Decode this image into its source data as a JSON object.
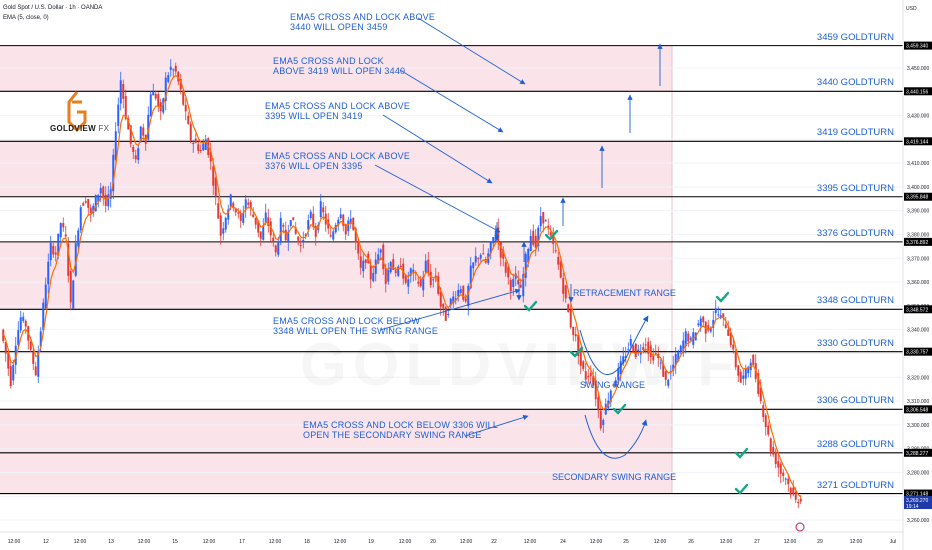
{
  "header": {
    "symbol_line": "Gold Spot / U.S. Dollar · 1h · OANDA",
    "indicator_line": "EMA (5, close, 0)",
    "currency": "USD"
  },
  "logo": {
    "brand": "GOLDVIEW",
    "suffix": "FX"
  },
  "watermark": "GOLDVIEW F",
  "annotations": [
    {
      "id": "note-3459",
      "lines": [
        "EMA5 CROSS AND LOCK ABOVE",
        "3440 WILL OPEN 3459"
      ]
    },
    {
      "id": "note-3440",
      "lines": [
        "EMA5 CROSS AND LOCK",
        "ABOVE 3419 WILL OPEN 3440"
      ]
    },
    {
      "id": "note-3419",
      "lines": [
        "EMA5 CROSS AND LOCK ABOVE",
        "3395 WILL OPEN 3419"
      ]
    },
    {
      "id": "note-3395",
      "lines": [
        "EMA5 CROSS AND LOCK ABOVE",
        "3376 WILL OPEN 3395"
      ]
    },
    {
      "id": "note-swing",
      "lines": [
        "EMA5 CROSS AND LOCK BELOW",
        "3348 WILL OPEN THE SWING RANGE"
      ]
    },
    {
      "id": "note-secondary",
      "lines": [
        "EMA5 CROSS AND LOCK BELOW 3306 WILL",
        "OPEN THE SECONDARY SWING RANGE"
      ]
    }
  ],
  "range_labels": {
    "retracement": "RETRACEMENT RANGE",
    "swing": "SWING RANGE",
    "secondary": "SECONDARY SWING RANGE"
  },
  "colors": {
    "band": "#fbe3ea",
    "candle_up": "#2962ff",
    "candle_down": "#e53935",
    "ema": "#ff6d00",
    "annotation": "#1f5fd6",
    "check": "#17a589",
    "level_line": "#000000"
  },
  "chart_data": {
    "type": "candlestick",
    "title": "Gold Spot / U.S. Dollar · 1h · OANDA",
    "ylim": [
      3255,
      3468
    ],
    "y_ticks": [
      3260,
      3270,
      3280,
      3290,
      3300,
      3310,
      3320,
      3330,
      3340,
      3350,
      3360,
      3370,
      3380,
      3390,
      3400,
      3410,
      3420,
      3430,
      3440,
      3450
    ],
    "x_ticks": [
      "12:00",
      "12",
      "12:00",
      "13",
      "12:00",
      "15",
      "12:00",
      "17",
      "12:00",
      "18",
      "12:00",
      "19",
      "12:00",
      "20",
      "12:00",
      "22",
      "12:00",
      "24",
      "12:00",
      "25",
      "12:00",
      "26",
      "12:00",
      "27",
      "12:00",
      "29",
      "12:00",
      "Jul"
    ],
    "levels": [
      {
        "value": 3459.34,
        "label": "3459 GOLDTURN",
        "price_tag": "3,459.340"
      },
      {
        "value": 3440.156,
        "label": "3440 GOLDTURN",
        "price_tag": "3,440.156"
      },
      {
        "value": 3419.144,
        "label": "3419 GOLDTURN",
        "price_tag": "3,419.144"
      },
      {
        "value": 3395.848,
        "label": "3395 GOLDTURN",
        "price_tag": "3,395.848"
      },
      {
        "value": 3376.892,
        "label": "3376 GOLDTURN",
        "price_tag": "3,376.892"
      },
      {
        "value": 3348.572,
        "label": "3348 GOLDTURN",
        "price_tag": "3,348.572"
      },
      {
        "value": 3330.757,
        "label": "3330 GOLDTURN",
        "price_tag": "3,330.757"
      },
      {
        "value": 3306.548,
        "label": "3306 GOLDTURN",
        "price_tag": "3,306.548"
      },
      {
        "value": 3288.277,
        "label": "3288 GOLDTURN",
        "price_tag": "3,288.277"
      },
      {
        "value": 3271.148,
        "label": "3271 GOLDTURN",
        "price_tag": "3,271.148"
      }
    ],
    "current_price": {
      "value": 3269.27,
      "tag": "3,269.270",
      "countdown": "19:14"
    },
    "path_points": [
      [
        0,
        3340
      ],
      [
        5,
        3330
      ],
      [
        10,
        3318
      ],
      [
        15,
        3335
      ],
      [
        20,
        3345
      ],
      [
        25,
        3342
      ],
      [
        30,
        3330
      ],
      [
        35,
        3322
      ],
      [
        40,
        3340
      ],
      [
        45,
        3360
      ],
      [
        50,
        3375
      ],
      [
        55,
        3372
      ],
      [
        60,
        3385
      ],
      [
        65,
        3378
      ],
      [
        70,
        3350
      ],
      [
        75,
        3375
      ],
      [
        80,
        3392
      ],
      [
        85,
        3395
      ],
      [
        90,
        3388
      ],
      [
        95,
        3395
      ],
      [
        100,
        3400
      ],
      [
        105,
        3392
      ],
      [
        110,
        3398
      ],
      [
        115,
        3425
      ],
      [
        120,
        3445
      ],
      [
        125,
        3430
      ],
      [
        130,
        3418
      ],
      [
        135,
        3410
      ],
      [
        140,
        3425
      ],
      [
        145,
        3420
      ],
      [
        150,
        3440
      ],
      [
        155,
        3438
      ],
      [
        160,
        3430
      ],
      [
        165,
        3445
      ],
      [
        170,
        3450
      ],
      [
        175,
        3448
      ],
      [
        180,
        3440
      ],
      [
        185,
        3430
      ],
      [
        190,
        3420
      ],
      [
        195,
        3418
      ],
      [
        200,
        3415
      ],
      [
        205,
        3420
      ],
      [
        210,
        3410
      ],
      [
        215,
        3395
      ],
      [
        220,
        3380
      ],
      [
        225,
        3388
      ],
      [
        230,
        3395
      ],
      [
        235,
        3390
      ],
      [
        240,
        3385
      ],
      [
        245,
        3395
      ],
      [
        250,
        3390
      ],
      [
        255,
        3385
      ],
      [
        260,
        3378
      ],
      [
        265,
        3388
      ],
      [
        270,
        3380
      ],
      [
        275,
        3372
      ],
      [
        280,
        3385
      ],
      [
        285,
        3378
      ],
      [
        290,
        3388
      ],
      [
        295,
        3380
      ],
      [
        300,
        3375
      ],
      [
        305,
        3382
      ],
      [
        310,
        3388
      ],
      [
        315,
        3380
      ],
      [
        320,
        3392
      ],
      [
        325,
        3385
      ],
      [
        330,
        3378
      ],
      [
        335,
        3385
      ],
      [
        340,
        3390
      ],
      [
        345,
        3380
      ],
      [
        350,
        3388
      ],
      [
        355,
        3376
      ],
      [
        360,
        3365
      ],
      [
        365,
        3370
      ],
      [
        370,
        3362
      ],
      [
        375,
        3368
      ],
      [
        380,
        3375
      ],
      [
        385,
        3360
      ],
      [
        390,
        3370
      ],
      [
        395,
        3362
      ],
      [
        400,
        3368
      ],
      [
        405,
        3358
      ],
      [
        410,
        3365
      ],
      [
        415,
        3362
      ],
      [
        420,
        3358
      ],
      [
        425,
        3368
      ],
      [
        430,
        3360
      ],
      [
        435,
        3362
      ],
      [
        440,
        3350
      ],
      [
        445,
        3345
      ],
      [
        450,
        3352
      ],
      [
        455,
        3355
      ],
      [
        460,
        3358
      ],
      [
        465,
        3350
      ],
      [
        470,
        3365
      ],
      [
        475,
        3370
      ],
      [
        480,
        3372
      ],
      [
        485,
        3368
      ],
      [
        490,
        3375
      ],
      [
        495,
        3382
      ],
      [
        500,
        3372
      ],
      [
        505,
        3365
      ],
      [
        510,
        3358
      ],
      [
        515,
        3362
      ],
      [
        520,
        3356
      ],
      [
        525,
        3370
      ],
      [
        530,
        3380
      ],
      [
        535,
        3375
      ],
      [
        540,
        3388
      ],
      [
        545,
        3385
      ],
      [
        550,
        3378
      ],
      [
        555,
        3372
      ],
      [
        560,
        3362
      ],
      [
        565,
        3352
      ],
      [
        570,
        3342
      ],
      [
        575,
        3336
      ],
      [
        580,
        3325
      ],
      [
        585,
        3320
      ],
      [
        590,
        3322
      ],
      [
        595,
        3312
      ],
      [
        600,
        3300
      ],
      [
        605,
        3308
      ],
      [
        610,
        3315
      ],
      [
        615,
        3320
      ],
      [
        620,
        3325
      ],
      [
        625,
        3330
      ],
      [
        630,
        3335
      ],
      [
        635,
        3330
      ],
      [
        640,
        3332
      ],
      [
        645,
        3335
      ],
      [
        650,
        3328
      ],
      [
        655,
        3330
      ],
      [
        660,
        3325
      ],
      [
        665,
        3318
      ],
      [
        670,
        3322
      ],
      [
        675,
        3328
      ],
      [
        680,
        3332
      ],
      [
        685,
        3338
      ],
      [
        690,
        3335
      ],
      [
        695,
        3340
      ],
      [
        700,
        3345
      ],
      [
        705,
        3340
      ],
      [
        710,
        3342
      ],
      [
        715,
        3348
      ],
      [
        720,
        3345
      ],
      [
        725,
        3342
      ],
      [
        730,
        3335
      ],
      [
        735,
        3325
      ],
      [
        740,
        3318
      ],
      [
        745,
        3322
      ],
      [
        750,
        3328
      ],
      [
        755,
        3320
      ],
      [
        760,
        3310
      ],
      [
        765,
        3300
      ],
      [
        770,
        3290
      ],
      [
        775,
        3285
      ],
      [
        780,
        3280
      ],
      [
        785,
        3278
      ],
      [
        790,
        3272
      ],
      [
        795,
        3268
      ],
      [
        800,
        3269.27
      ]
    ]
  }
}
